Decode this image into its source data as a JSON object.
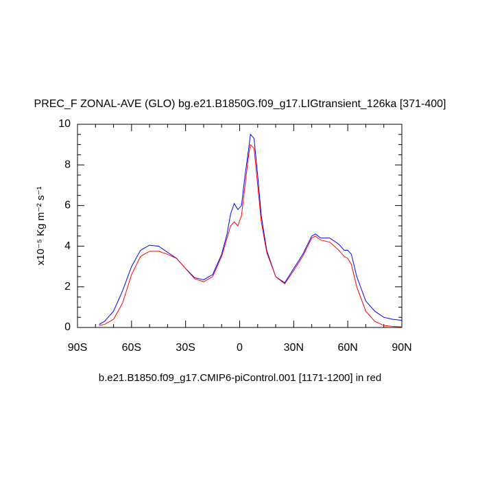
{
  "chart_data": {
    "type": "line",
    "title": "PREC_F ZONAL-AVE (GLO) bg.e21.B1850G.f09_g17.LIGtransient_126ka [371-400]",
    "xlabel": "b.e21.B1850.f09_g17.CMIP6-piControl.001 [1171-1200] in red",
    "ylabel": "x10⁻⁵ Kg m⁻² s⁻¹",
    "x": [
      -78,
      -75,
      -70,
      -65,
      -60,
      -55,
      -50,
      -45,
      -40,
      -35,
      -30,
      -25,
      -20,
      -15,
      -10,
      -7,
      -5,
      -3,
      -1,
      1,
      3,
      5,
      6,
      8,
      10,
      12,
      15,
      20,
      25,
      30,
      35,
      40,
      42,
      45,
      50,
      55,
      58,
      60,
      62,
      65,
      70,
      75,
      80,
      85,
      90
    ],
    "series": [
      {
        "color": "#0000ff",
        "values": [
          0.15,
          0.3,
          0.8,
          1.8,
          3.0,
          3.8,
          4.05,
          4.0,
          3.7,
          3.4,
          2.9,
          2.45,
          2.35,
          2.6,
          3.6,
          4.6,
          5.6,
          6.1,
          5.8,
          6.0,
          7.5,
          8.8,
          9.5,
          9.3,
          7.5,
          5.5,
          3.8,
          2.5,
          2.2,
          2.9,
          3.6,
          4.5,
          4.6,
          4.4,
          4.4,
          4.1,
          3.8,
          3.8,
          3.6,
          2.5,
          1.3,
          0.8,
          0.5,
          0.4,
          0.35
        ]
      },
      {
        "color": "#ff0000",
        "values": [
          0.1,
          0.15,
          0.4,
          1.2,
          2.6,
          3.5,
          3.75,
          3.75,
          3.6,
          3.4,
          2.9,
          2.4,
          2.25,
          2.5,
          3.5,
          4.4,
          5.0,
          5.2,
          5.0,
          5.5,
          7.0,
          8.5,
          9.0,
          8.8,
          7.0,
          5.2,
          3.7,
          2.5,
          2.15,
          2.8,
          3.5,
          4.4,
          4.5,
          4.3,
          4.2,
          3.8,
          3.5,
          3.4,
          3.1,
          2.0,
          0.8,
          0.3,
          0.1,
          0.05,
          0.03
        ]
      }
    ],
    "xlim": [
      -90,
      90
    ],
    "xticks": [
      {
        "value": -90,
        "label": "90S"
      },
      {
        "value": -60,
        "label": "60S"
      },
      {
        "value": -30,
        "label": "30S"
      },
      0,
      {
        "value": 30,
        "label": "30N"
      },
      {
        "value": 60,
        "label": "60N"
      },
      {
        "value": 90,
        "label": "90N"
      }
    ],
    "xminorticks": [
      -80,
      -70,
      -50,
      -40,
      -20,
      -10,
      10,
      20,
      40,
      50,
      70,
      80
    ],
    "ylim": [
      0,
      10
    ],
    "yticks": [
      0,
      2,
      4,
      6,
      8,
      10
    ],
    "yminorticks": [
      0.5,
      1,
      1.5,
      2.5,
      3,
      3.5,
      4.5,
      5,
      5.5,
      6.5,
      7,
      7.5,
      8.5,
      9,
      9.5
    ]
  }
}
